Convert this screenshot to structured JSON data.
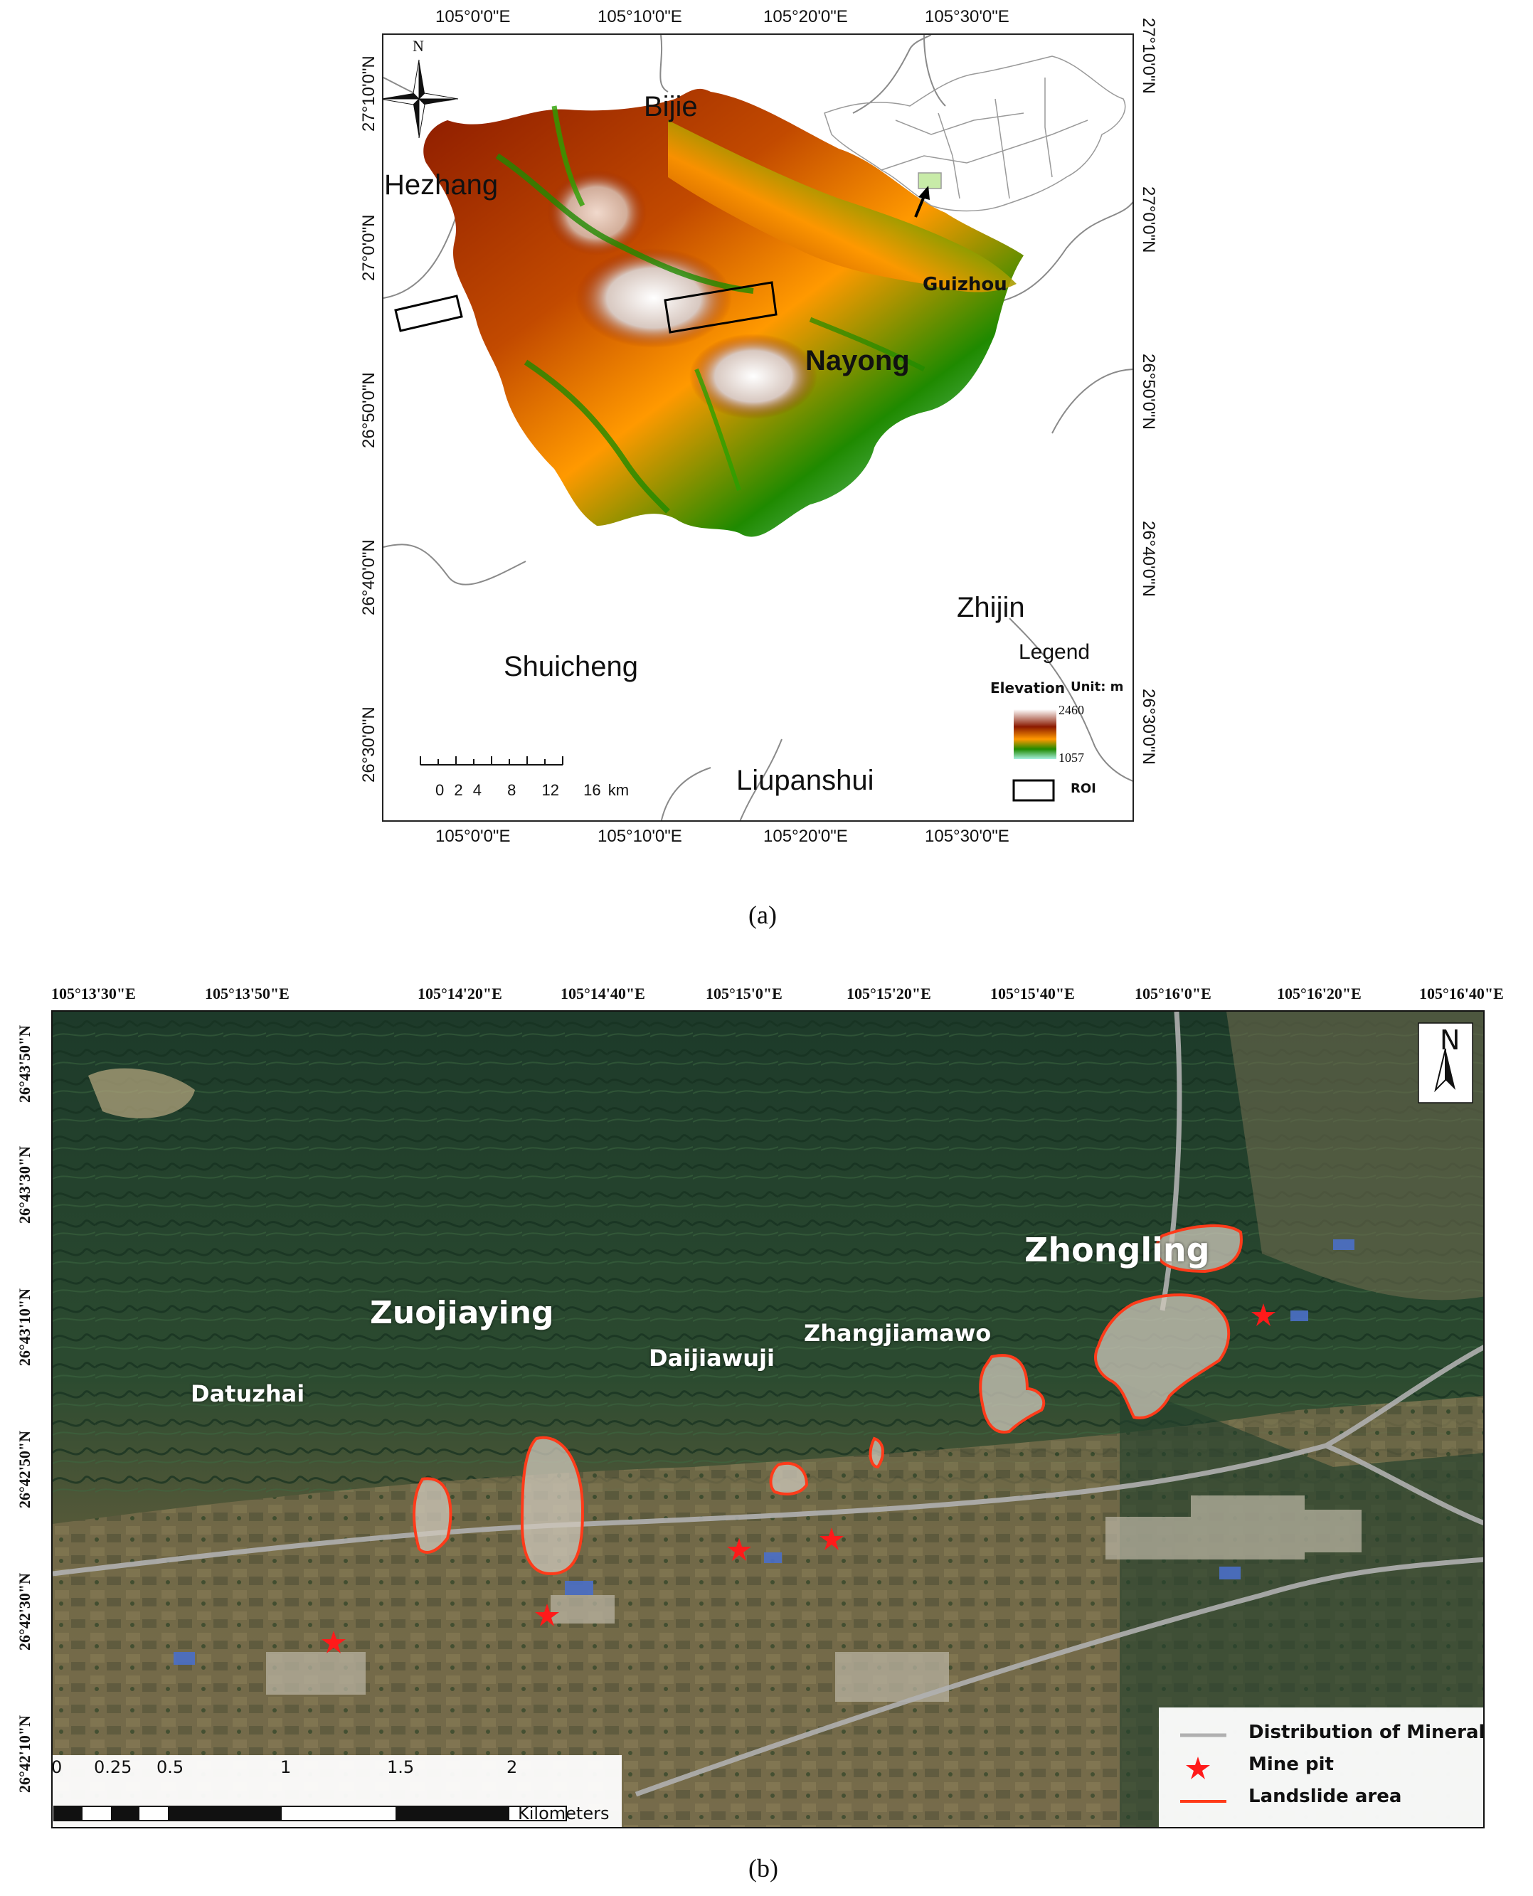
{
  "panel_a": {
    "caption": "(a)",
    "lon_labels": [
      "105°0'0\"E",
      "105°10'0\"E",
      "105°20'0\"E",
      "105°30'0\"E"
    ],
    "lat_labels": [
      "27°10'0\"N",
      "27°0'0\"N",
      "26°50'0\"N",
      "26°40'0\"N",
      "26°30'0\"N"
    ],
    "places": {
      "bijie": "Bijie",
      "hezhang": "Hezhang",
      "nayong": "Nayong",
      "zhijin": "Zhijin",
      "shuicheng": "Shuicheng",
      "liupanshui": "Liupanshui"
    },
    "inset_label": "Guizhou",
    "north_label": "N",
    "scale": {
      "ticks": [
        "0",
        "2",
        "4",
        "8",
        "12",
        "16"
      ],
      "unit": "km"
    },
    "legend": {
      "title": "Legend",
      "elevation_label": "Elevation",
      "unit_label": "Unit: m",
      "max": "2460",
      "min": "1057",
      "roi_label": "ROI",
      "colors": [
        "#ffffff",
        "#8b1a00",
        "#ff9900",
        "#1f8a00",
        "#a8f0e0"
      ]
    }
  },
  "panel_b": {
    "caption": "(b)",
    "lon_labels": [
      "105°13'30\"E",
      "105°13'50\"E",
      "105°14'20\"E",
      "105°14'40\"E",
      "105°15'0\"E",
      "105°15'20\"E",
      "105°15'40\"E",
      "105°16'0\"E",
      "105°16'20\"E",
      "105°16'40\"E"
    ],
    "lat_labels": [
      "26°43'50\"N",
      "26°43'30\"N",
      "26°43'10\"N",
      "26°42'50\"N",
      "26°42'30\"N",
      "26°42'10\"N"
    ],
    "places": {
      "zhongling": "Zhongling",
      "zuojiaying": "Zuojiaying",
      "daijiawuji": "Daijiawuji",
      "zhangjiamawo": "Zhangjiamawo",
      "datuzhai": "Datuzhai"
    },
    "north_label": "N",
    "scale": {
      "ticks": [
        "0",
        "0.25",
        "0.5",
        "1",
        "1.5",
        "2"
      ],
      "unit": "Kilometers"
    },
    "legend": {
      "mineral": "Distribution of Mineral",
      "mine_pit": "Mine pit",
      "landslide": "Landslide area",
      "colors": {
        "mineral": "#b0b0b0",
        "pit": "#ff1a1a",
        "landslide": "#ff3b1a"
      }
    }
  }
}
